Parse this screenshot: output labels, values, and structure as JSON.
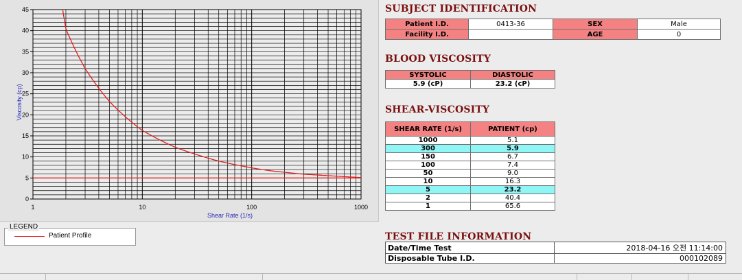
{
  "chart_data": {
    "type": "line",
    "xscale": "log",
    "xlim": [
      1,
      1000
    ],
    "ylim": [
      0,
      45
    ],
    "xlabel": "Shear Rate (1/s)",
    "ylabel": "Viscosity (cp)",
    "x_ticks": [
      "1",
      "10",
      "100",
      "1000"
    ],
    "y_ticks": [
      "0",
      "5",
      "10",
      "15",
      "20",
      "25",
      "30",
      "35",
      "40",
      "45"
    ],
    "grid": true,
    "series": [
      {
        "name": "Patient Profile",
        "color": "#e02020",
        "x": [
          1.87,
          2,
          3,
          5,
          10,
          20,
          50,
          100,
          150,
          300,
          1000
        ],
        "y": [
          45,
          40.4,
          31,
          23.2,
          16.3,
          12.3,
          9.0,
          7.4,
          6.7,
          5.9,
          5.1
        ]
      },
      {
        "color": "#e02020",
        "x": [
          1,
          1000
        ],
        "y": [
          5,
          5
        ]
      }
    ]
  },
  "legend": {
    "title": "LEGEND",
    "items": [
      {
        "label": "Patient Profile",
        "color": "#e02020"
      }
    ]
  },
  "subject": {
    "title": "SUBJECT IDENTIFICATION",
    "patient_id_label": "Patient I.D.",
    "patient_id": "0413-36",
    "sex_label": "SEX",
    "sex": "Male",
    "facility_id_label": "Facility I.D.",
    "facility_id": "",
    "age_label": "AGE",
    "age": "0"
  },
  "blood_viscosity": {
    "title": "BLOOD VISCOSITY",
    "systolic_label": "SYSTOLIC",
    "diastolic_label": "DIASTOLIC",
    "systolic": "5.9 (cP)",
    "diastolic": "23.2 (cP)"
  },
  "shear_viscosity": {
    "title": "SHEAR-VISCOSITY",
    "col_rate": "SHEAR RATE (1/s)",
    "col_patient": "PATIENT (cp)",
    "rows": [
      {
        "rate": "1000",
        "value": "5.1",
        "highlight": false
      },
      {
        "rate": "300",
        "value": "5.9",
        "highlight": true
      },
      {
        "rate": "150",
        "value": "6.7",
        "highlight": false
      },
      {
        "rate": "100",
        "value": "7.4",
        "highlight": false
      },
      {
        "rate": "50",
        "value": "9.0",
        "highlight": false
      },
      {
        "rate": "10",
        "value": "16.3",
        "highlight": false
      },
      {
        "rate": "5",
        "value": "23.2",
        "highlight": true
      },
      {
        "rate": "2",
        "value": "40.4",
        "highlight": false
      },
      {
        "rate": "1",
        "value": "65.6",
        "highlight": false
      }
    ]
  },
  "test_file": {
    "title": "TEST FILE INFORMATION",
    "datetime_label": "Date/Time Test",
    "datetime": "2018-04-16   오전 11:14:00",
    "tube_label": "Disposable Tube I.D.",
    "tube_id": "000102089"
  },
  "colors": {
    "header": "#f48282",
    "highlight": "#8ff5f5",
    "title": "#7a0f0f",
    "curve": "#e02020"
  }
}
